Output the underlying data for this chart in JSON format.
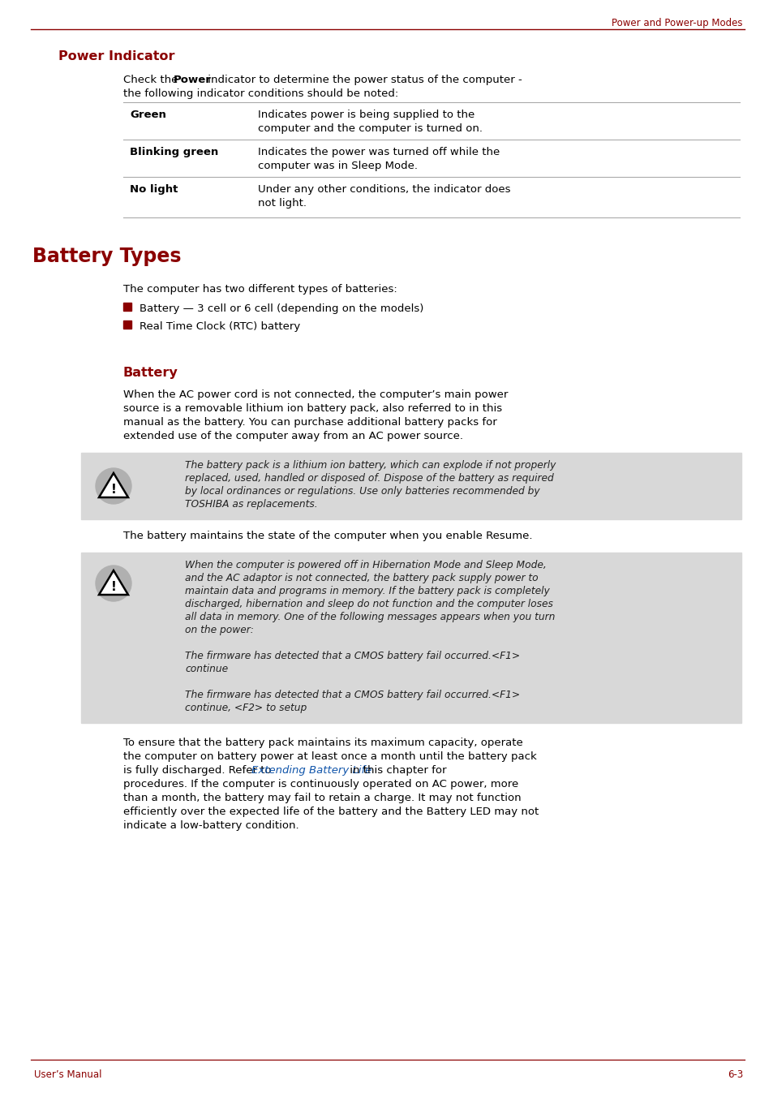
{
  "bg_color": "#ffffff",
  "dark_red": "#8B0000",
  "black": "#000000",
  "gray_line": "#aaaaaa",
  "light_gray_bg": "#d8d8d8",
  "header_text": "Power and Power-up Modes",
  "footer_left": "User’s Manual",
  "footer_right": "6-3",
  "section1_title": "Power Indicator",
  "section1_intro_before": "Check the ",
  "section1_intro_bold": "Power",
  "section1_intro_after": " indicator to determine the power status of the computer -",
  "section1_intro_line2": "the following indicator conditions should be noted:",
  "table_rows": [
    {
      "label": "Green",
      "desc": "Indicates power is being supplied to the\ncomputer and the computer is turned on."
    },
    {
      "label": "Blinking green",
      "desc": "Indicates the power was turned off while the\ncomputer was in Sleep Mode."
    },
    {
      "label": "No light",
      "desc": "Under any other conditions, the indicator does\nnot light."
    }
  ],
  "section2_title": "Battery Types",
  "section2_intro": "The computer has two different types of batteries:",
  "bullet_items": [
    "Battery — 3 cell or 6 cell (depending on the models)",
    "Real Time Clock (RTC) battery"
  ],
  "section3_title": "Battery",
  "section3_para1_lines": [
    "When the AC power cord is not connected, the computer’s main power",
    "source is a removable lithium ion battery pack, also referred to in this",
    "manual as the battery. You can purchase additional battery packs for",
    "extended use of the computer away from an AC power source."
  ],
  "warning1_lines": [
    "The battery pack is a lithium ion battery, which can explode if not properly",
    "replaced, used, handled or disposed of. Dispose of the battery as required",
    "by local ordinances or regulations. Use only batteries recommended by",
    "TOSHIBA as replacements."
  ],
  "section3_para2": "The battery maintains the state of the computer when you enable Resume.",
  "warning2_lines": [
    "When the computer is powered off in Hibernation Mode and Sleep Mode,",
    "and the AC adaptor is not connected, the battery pack supply power to",
    "maintain data and programs in memory. If the battery pack is completely",
    "discharged, hibernation and sleep do not function and the computer loses",
    "all data in memory. One of the following messages appears when you turn",
    "on the power:",
    "",
    "The firmware has detected that a CMOS battery fail occurred.<F1>",
    "continue",
    "",
    "The firmware has detected that a CMOS battery fail occurred.<F1>",
    "continue, <F2> to setup"
  ],
  "section3_para3_lines": [
    "To ensure that the battery pack maintains its maximum capacity, operate",
    "the computer on battery power at least once a month until the battery pack",
    "is fully discharged. Refer to Extending Battery Life in this chapter for",
    "procedures. If the computer is continuously operated on AC power, more",
    "than a month, the battery may fail to retain a charge. It may not function",
    "efficiently over the expected life of the battery and the Battery LED may not",
    "indicate a low-battery condition."
  ],
  "extending_battery_link": "Extending Battery Life",
  "para3_link_line_idx": 2,
  "para3_link_before": "is fully discharged. Refer to ",
  "para3_link_after": " in this chapter for"
}
